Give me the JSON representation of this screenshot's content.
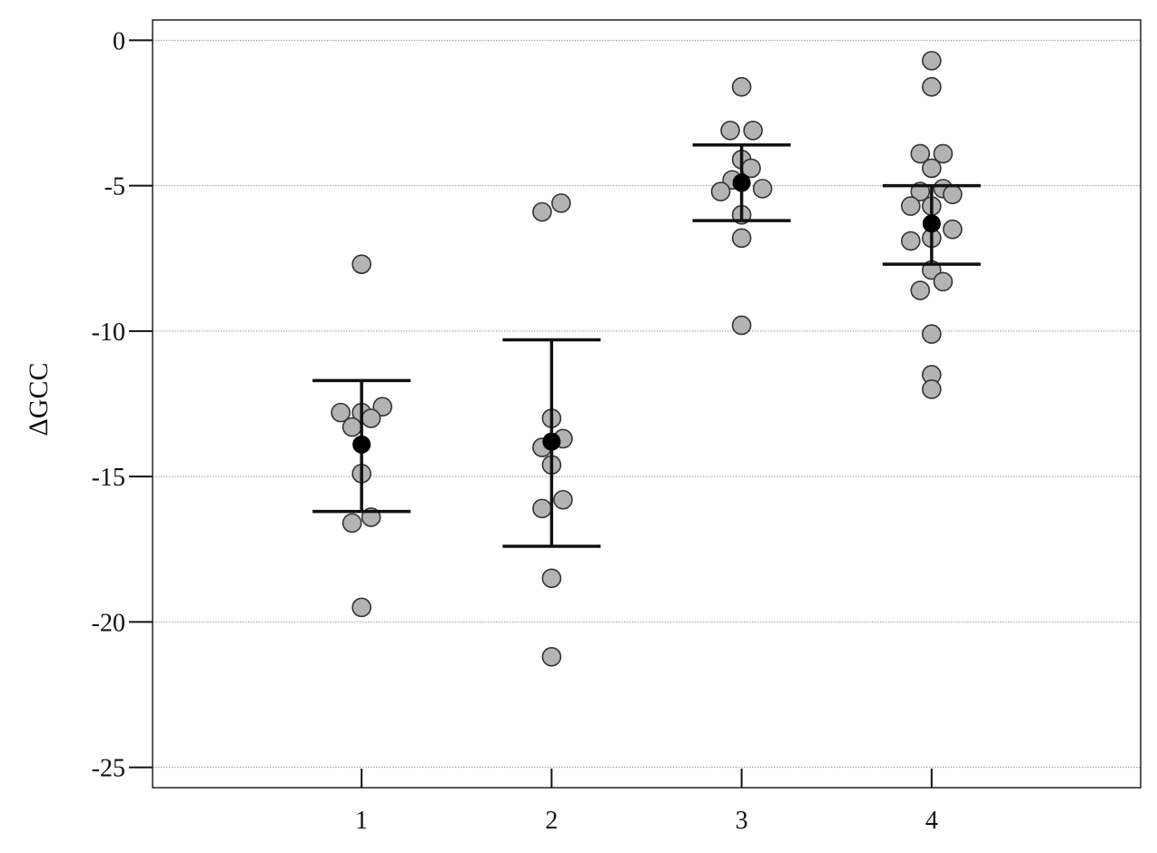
{
  "chart_data": {
    "type": "scatter",
    "title": "",
    "xlabel": "",
    "ylabel": "ΔGCC",
    "categories": [
      "1",
      "2",
      "3",
      "4"
    ],
    "y_ticks": [
      0,
      -5,
      -10,
      -15,
      -20,
      -25
    ],
    "y_tick_labels": [
      "0",
      "-5",
      "-10",
      "-15",
      "-20",
      "-25"
    ],
    "ylim": [
      -25.7,
      0.7
    ],
    "xlim": [
      -0.1,
      5.1
    ],
    "grid": true,
    "groups": [
      {
        "category": "1",
        "mean": -13.9,
        "error_upper": -11.7,
        "error_lower": -16.2,
        "points": [
          {
            "x": 1.0,
            "y": -7.7
          },
          {
            "x": 0.89,
            "y": -12.8
          },
          {
            "x": 1.0,
            "y": -12.8
          },
          {
            "x": 1.11,
            "y": -12.6
          },
          {
            "x": 1.05,
            "y": -13.0
          },
          {
            "x": 0.95,
            "y": -13.3
          },
          {
            "x": 1.0,
            "y": -14.9
          },
          {
            "x": 0.95,
            "y": -16.6
          },
          {
            "x": 1.05,
            "y": -16.4
          },
          {
            "x": 1.0,
            "y": -19.5
          }
        ]
      },
      {
        "category": "2",
        "mean": -13.8,
        "error_upper": -10.3,
        "error_lower": -17.4,
        "points": [
          {
            "x": 1.95,
            "y": -5.9
          },
          {
            "x": 2.05,
            "y": -5.6
          },
          {
            "x": 2.0,
            "y": -13.0
          },
          {
            "x": 1.95,
            "y": -14.0
          },
          {
            "x": 2.06,
            "y": -13.7
          },
          {
            "x": 2.0,
            "y": -14.6
          },
          {
            "x": 1.95,
            "y": -16.1
          },
          {
            "x": 2.06,
            "y": -15.8
          },
          {
            "x": 2.0,
            "y": -18.5
          },
          {
            "x": 2.0,
            "y": -21.2
          }
        ]
      },
      {
        "category": "3",
        "mean": -4.9,
        "error_upper": -3.6,
        "error_lower": -6.2,
        "points": [
          {
            "x": 3.0,
            "y": -1.6
          },
          {
            "x": 2.94,
            "y": -3.1
          },
          {
            "x": 3.06,
            "y": -3.1
          },
          {
            "x": 3.0,
            "y": -4.1
          },
          {
            "x": 3.05,
            "y": -4.4
          },
          {
            "x": 2.95,
            "y": -4.8
          },
          {
            "x": 2.89,
            "y": -5.2
          },
          {
            "x": 3.11,
            "y": -5.1
          },
          {
            "x": 3.0,
            "y": -6.0
          },
          {
            "x": 3.0,
            "y": -6.8
          },
          {
            "x": 3.0,
            "y": -9.8
          }
        ]
      },
      {
        "category": "4",
        "mean": -6.3,
        "error_upper": -5.0,
        "error_lower": -7.7,
        "points": [
          {
            "x": 4.0,
            "y": -0.7
          },
          {
            "x": 4.0,
            "y": -1.6
          },
          {
            "x": 3.94,
            "y": -3.9
          },
          {
            "x": 4.06,
            "y": -3.9
          },
          {
            "x": 4.0,
            "y": -4.4
          },
          {
            "x": 3.94,
            "y": -5.2
          },
          {
            "x": 4.06,
            "y": -5.1
          },
          {
            "x": 4.11,
            "y": -5.3
          },
          {
            "x": 3.89,
            "y": -5.7
          },
          {
            "x": 4.0,
            "y": -5.7
          },
          {
            "x": 4.11,
            "y": -6.5
          },
          {
            "x": 3.89,
            "y": -6.9
          },
          {
            "x": 4.0,
            "y": -6.8
          },
          {
            "x": 4.0,
            "y": -7.9
          },
          {
            "x": 4.06,
            "y": -8.3
          },
          {
            "x": 3.94,
            "y": -8.6
          },
          {
            "x": 4.0,
            "y": -10.1
          },
          {
            "x": 4.0,
            "y": -11.5
          },
          {
            "x": 4.0,
            "y": -12.0
          }
        ]
      }
    ],
    "colors": {
      "point_fill": "#b3b3b3",
      "point_stroke": "#333333",
      "mean": "#000000",
      "error_bar": "#111111",
      "grid": "#9a9a9a"
    }
  }
}
